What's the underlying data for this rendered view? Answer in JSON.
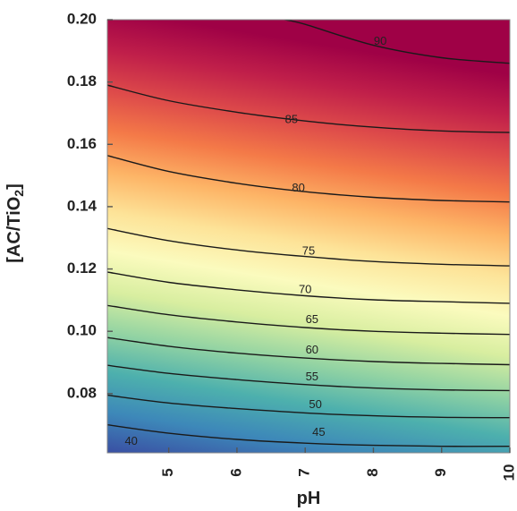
{
  "chart_data": {
    "type": "contour",
    "xlabel": "pH",
    "ylabel": "[AC/TiO",
    "ylabel_sub": "2",
    "ylabel_end": "]",
    "xlim": [
      4.1,
      10
    ],
    "ylim": [
      0.061,
      0.2
    ],
    "x_ticks": [
      {
        "value": 5,
        "label": "5"
      },
      {
        "value": 6,
        "label": "6"
      },
      {
        "value": 7,
        "label": "7"
      },
      {
        "value": 8,
        "label": "8"
      },
      {
        "value": 9,
        "label": "9"
      },
      {
        "value": 10,
        "label": "10"
      }
    ],
    "y_ticks": [
      {
        "value": 0.08,
        "label": "0.08"
      },
      {
        "value": 0.1,
        "label": "0.10"
      },
      {
        "value": 0.12,
        "label": "0.12"
      },
      {
        "value": 0.14,
        "label": "0.14"
      },
      {
        "value": 0.16,
        "label": "0.16"
      },
      {
        "value": 0.18,
        "label": "0.18"
      },
      {
        "value": 0.2,
        "label": "0.20"
      }
    ],
    "contours": [
      {
        "level": 40,
        "label": "40",
        "label_x": 4.45,
        "label_y": 0.0645,
        "points": []
      },
      {
        "level": 45,
        "label": "45",
        "label_x": 7.2,
        "label_y": 0.0675,
        "points": [
          [
            4.1,
            0.07
          ],
          [
            5.0,
            0.0673
          ],
          [
            6.0,
            0.0653
          ],
          [
            7.0,
            0.0641
          ],
          [
            8.0,
            0.0634
          ],
          [
            9.0,
            0.0631
          ],
          [
            10.0,
            0.0631
          ]
        ]
      },
      {
        "level": 50,
        "label": "50",
        "label_x": 7.15,
        "label_y": 0.0763,
        "points": [
          [
            4.1,
            0.0795
          ],
          [
            5.0,
            0.077
          ],
          [
            6.0,
            0.0752
          ],
          [
            7.0,
            0.0738
          ],
          [
            8.0,
            0.0729
          ],
          [
            9.0,
            0.0724
          ],
          [
            10.0,
            0.0723
          ]
        ]
      },
      {
        "level": 55,
        "label": "55",
        "label_x": 7.1,
        "label_y": 0.0852,
        "points": [
          [
            4.1,
            0.0891
          ],
          [
            5.0,
            0.0865
          ],
          [
            6.0,
            0.0845
          ],
          [
            7.0,
            0.0829
          ],
          [
            8.0,
            0.0818
          ],
          [
            9.0,
            0.0812
          ],
          [
            10.0,
            0.081
          ]
        ]
      },
      {
        "level": 60,
        "label": "60",
        "label_x": 7.1,
        "label_y": 0.0938,
        "points": [
          [
            4.1,
            0.098
          ],
          [
            5.0,
            0.0952
          ],
          [
            6.0,
            0.093
          ],
          [
            7.0,
            0.0914
          ],
          [
            8.0,
            0.0903
          ],
          [
            9.0,
            0.0897
          ],
          [
            10.0,
            0.0893
          ]
        ]
      },
      {
        "level": 65,
        "label": "65",
        "label_x": 7.1,
        "label_y": 0.1036,
        "points": [
          [
            4.1,
            0.1083
          ],
          [
            5.0,
            0.1053
          ],
          [
            6.0,
            0.103
          ],
          [
            7.0,
            0.1012
          ],
          [
            8.0,
            0.1
          ],
          [
            9.0,
            0.0994
          ],
          [
            10.0,
            0.099
          ]
        ]
      },
      {
        "level": 70,
        "label": "70",
        "label_x": 7.0,
        "label_y": 0.1132,
        "points": [
          [
            4.1,
            0.119
          ],
          [
            5.0,
            0.1157
          ],
          [
            6.0,
            0.1133
          ],
          [
            7.0,
            0.1114
          ],
          [
            8.0,
            0.1101
          ],
          [
            9.0,
            0.1095
          ],
          [
            10.0,
            0.109
          ]
        ]
      },
      {
        "level": 75,
        "label": "75",
        "label_x": 7.05,
        "label_y": 0.1256,
        "points": [
          [
            4.1,
            0.133
          ],
          [
            5.0,
            0.1291
          ],
          [
            6.0,
            0.1261
          ],
          [
            7.0,
            0.124
          ],
          [
            8.0,
            0.1224
          ],
          [
            9.0,
            0.1215
          ],
          [
            10.0,
            0.121
          ]
        ]
      },
      {
        "level": 80,
        "label": "80",
        "label_x": 6.9,
        "label_y": 0.1458,
        "points": [
          [
            4.1,
            0.1564
          ],
          [
            5.0,
            0.1513
          ],
          [
            6.0,
            0.1475
          ],
          [
            7.0,
            0.1448
          ],
          [
            8.0,
            0.143
          ],
          [
            9.0,
            0.142
          ],
          [
            10.0,
            0.1415
          ]
        ]
      },
      {
        "level": 85,
        "label": "85",
        "label_x": 6.8,
        "label_y": 0.1678,
        "points": [
          [
            4.1,
            0.179
          ],
          [
            5.0,
            0.174
          ],
          [
            6.0,
            0.1703
          ],
          [
            7.0,
            0.1675
          ],
          [
            8.0,
            0.1655
          ],
          [
            9.0,
            0.1643
          ],
          [
            10.0,
            0.1638
          ]
        ]
      },
      {
        "level": 90,
        "label": "90",
        "label_x": 8.1,
        "label_y": 0.193,
        "points": [
          [
            6.7,
            0.2
          ],
          [
            7.0,
            0.1985
          ],
          [
            8.0,
            0.1918
          ],
          [
            9.0,
            0.1878
          ],
          [
            10.0,
            0.186
          ]
        ]
      }
    ],
    "colormap": [
      "#3a4fa3",
      "#3d88b9",
      "#4db0ad",
      "#92d3a3",
      "#d8eea0",
      "#fbfbbe",
      "#fde398",
      "#fdb466",
      "#f47a48",
      "#dd4a4a",
      "#c01f4a",
      "#9f0146"
    ],
    "grid": false
  }
}
